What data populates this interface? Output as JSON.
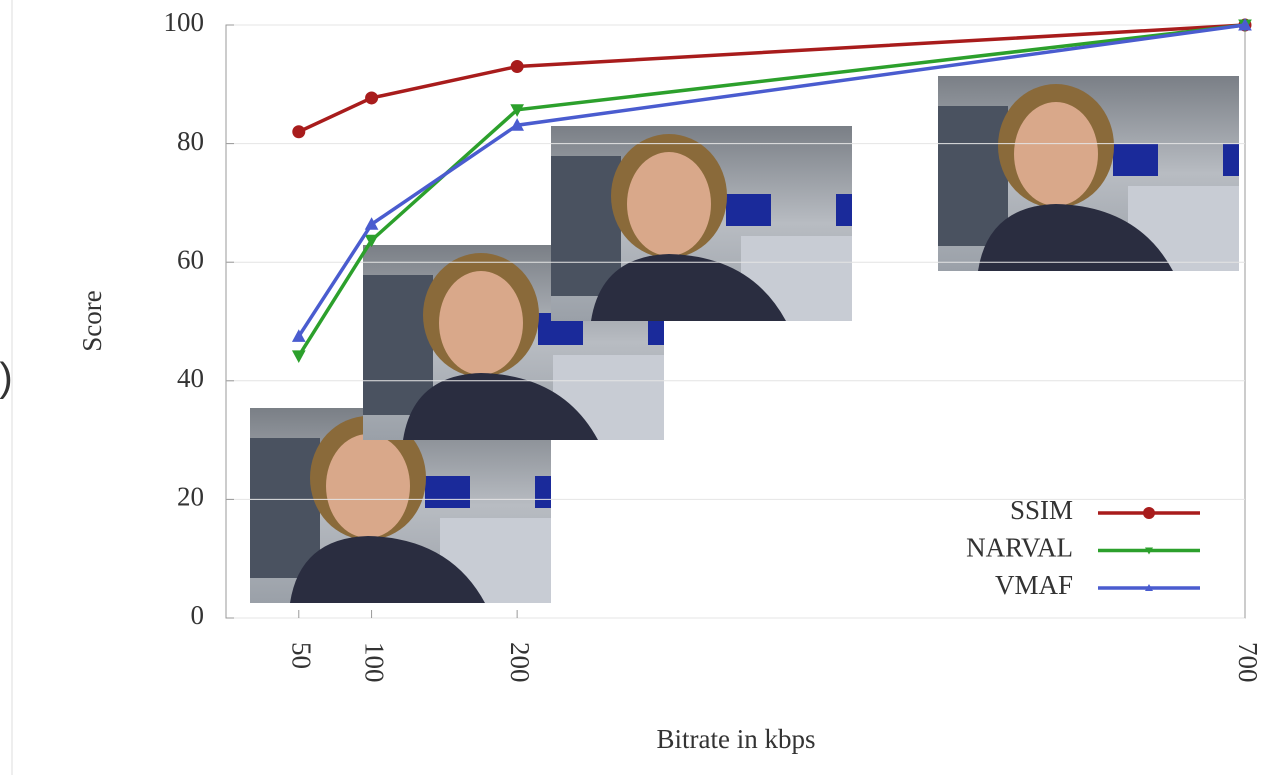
{
  "left_fragment": ")",
  "chart_data": {
    "type": "line",
    "x_label": "Bitrate in kbps",
    "y_label": "Score",
    "x": [
      50,
      100,
      200,
      700
    ],
    "xlim": [
      0,
      700
    ],
    "xticks": [
      50,
      100,
      200,
      700
    ],
    "ylim": [
      0,
      100
    ],
    "yticks": [
      0,
      20,
      40,
      60,
      80,
      100
    ],
    "grid": true,
    "legend": "lower right",
    "series": [
      {
        "name": "SSIM",
        "color": "#a81c1c",
        "marker": "circle",
        "values": [
          82,
          87.7,
          93,
          100
        ]
      },
      {
        "name": "NARVAL",
        "color": "#2ca02c",
        "marker": "triangle-down",
        "values": [
          44.2,
          63.7,
          85.7,
          100
        ]
      },
      {
        "name": "VMAF",
        "color": "#4a5ccf",
        "marker": "triangle",
        "values": [
          47.5,
          66.4,
          83.1,
          100
        ]
      }
    ]
  }
}
